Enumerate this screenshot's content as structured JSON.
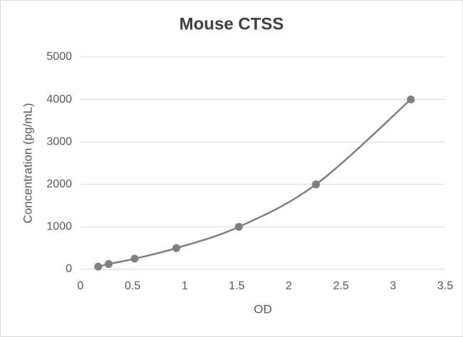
{
  "chart_data": {
    "type": "scatter",
    "title": "Mouse CTSS",
    "x_label": "OD",
    "y_label": "Concentration (pg/mL)",
    "x": [
      0.17,
      0.27,
      0.52,
      0.92,
      1.52,
      2.26,
      3.17
    ],
    "values": [
      62.5,
      125,
      250,
      500,
      1000,
      2000,
      4000
    ],
    "color": "#7f7f7f",
    "smooth": true,
    "xlim": [
      0,
      3.5
    ],
    "xticks": [
      0,
      0.5,
      1,
      1.5,
      2,
      2.5,
      3,
      3.5
    ],
    "ylim": [
      0,
      5000
    ],
    "yticks": [
      0,
      1000,
      2000,
      3000,
      4000,
      5000
    ],
    "grid": true
  }
}
